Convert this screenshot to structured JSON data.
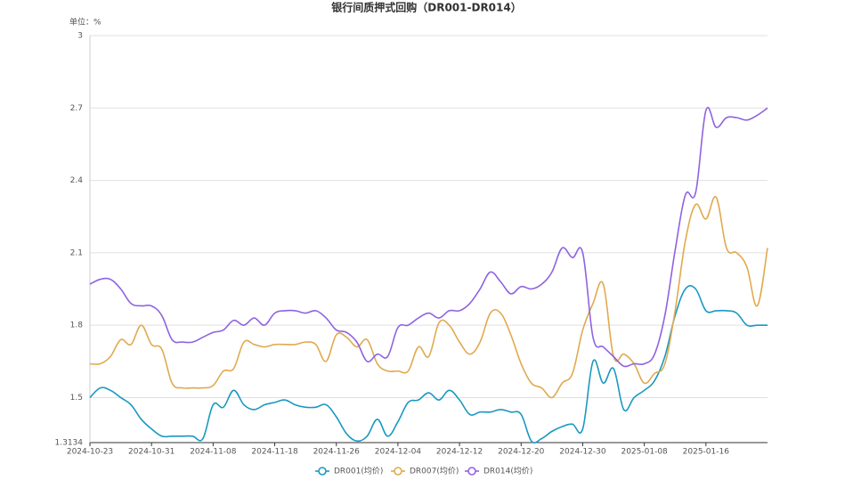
{
  "chart_data": {
    "type": "line",
    "title": "银行间质押式回购（DR001-DR014）",
    "unit_label": "单位：%",
    "categories": [
      "2024-10-23",
      null,
      null,
      null,
      null,
      null,
      "2024-10-31",
      null,
      null,
      null,
      null,
      null,
      "2024-11-08",
      null,
      null,
      null,
      null,
      null,
      "2024-11-18",
      null,
      null,
      null,
      null,
      null,
      "2024-11-26",
      null,
      null,
      null,
      null,
      null,
      "2024-12-04",
      null,
      null,
      null,
      null,
      null,
      "2024-12-12",
      null,
      null,
      null,
      null,
      null,
      "2024-12-20",
      null,
      null,
      null,
      null,
      null,
      "2024-12-30",
      null,
      null,
      null,
      null,
      null,
      "2025-01-08",
      null,
      null,
      null,
      null,
      null,
      "2025-01-16",
      null,
      null,
      null,
      null,
      null,
      null
    ],
    "series": [
      {
        "name": "DR001(均价)",
        "color": "#1a98c1",
        "values": [
          1.5,
          1.54,
          1.53,
          1.5,
          1.47,
          1.41,
          1.37,
          1.34,
          1.34,
          1.34,
          1.34,
          1.33,
          1.47,
          1.46,
          1.53,
          1.47,
          1.45,
          1.47,
          1.48,
          1.49,
          1.47,
          1.46,
          1.46,
          1.47,
          1.42,
          1.35,
          1.32,
          1.34,
          1.41,
          1.34,
          1.4,
          1.48,
          1.49,
          1.52,
          1.49,
          1.53,
          1.49,
          1.43,
          1.44,
          1.44,
          1.45,
          1.44,
          1.43,
          1.32,
          1.33,
          1.36,
          1.38,
          1.39,
          1.37,
          1.65,
          1.56,
          1.62,
          1.45,
          1.5,
          1.53,
          1.57,
          1.67,
          1.84,
          1.95,
          1.95,
          1.86,
          1.86,
          1.86,
          1.85,
          1.8,
          1.8,
          1.8
        ]
      },
      {
        "name": "DR007(均价)",
        "color": "#e0aa4f",
        "values": [
          1.64,
          1.64,
          1.67,
          1.74,
          1.72,
          1.8,
          1.72,
          1.7,
          1.56,
          1.54,
          1.54,
          1.54,
          1.55,
          1.61,
          1.62,
          1.73,
          1.72,
          1.71,
          1.72,
          1.72,
          1.72,
          1.73,
          1.72,
          1.65,
          1.76,
          1.75,
          1.71,
          1.74,
          1.64,
          1.61,
          1.61,
          1.61,
          1.71,
          1.67,
          1.81,
          1.8,
          1.73,
          1.68,
          1.73,
          1.85,
          1.85,
          1.76,
          1.64,
          1.56,
          1.54,
          1.5,
          1.56,
          1.6,
          1.78,
          1.89,
          1.97,
          1.67,
          1.68,
          1.64,
          1.56,
          1.6,
          1.64,
          1.86,
          2.15,
          2.3,
          2.24,
          2.33,
          2.12,
          2.1,
          2.04,
          1.88,
          2.12
        ]
      },
      {
        "name": "DR014(均价)",
        "color": "#8f63e0",
        "values": [
          1.97,
          1.99,
          1.99,
          1.95,
          1.89,
          1.88,
          1.88,
          1.84,
          1.74,
          1.73,
          1.73,
          1.75,
          1.77,
          1.78,
          1.82,
          1.8,
          1.83,
          1.8,
          1.85,
          1.86,
          1.86,
          1.85,
          1.86,
          1.83,
          1.78,
          1.77,
          1.73,
          1.65,
          1.68,
          1.67,
          1.79,
          1.8,
          1.83,
          1.85,
          1.83,
          1.86,
          1.86,
          1.89,
          1.95,
          2.02,
          1.98,
          1.93,
          1.96,
          1.95,
          1.97,
          2.02,
          2.12,
          2.08,
          2.1,
          1.75,
          1.71,
          1.67,
          1.63,
          1.64,
          1.64,
          1.68,
          1.84,
          2.11,
          2.34,
          2.35,
          2.69,
          2.62,
          2.66,
          2.66,
          2.65,
          2.67,
          2.7
        ]
      }
    ],
    "ylim": [
      1.3134,
      3
    ],
    "yticks": [
      1.3134,
      1.5,
      1.8,
      2.1,
      2.4,
      2.7,
      3
    ],
    "grid": true
  }
}
